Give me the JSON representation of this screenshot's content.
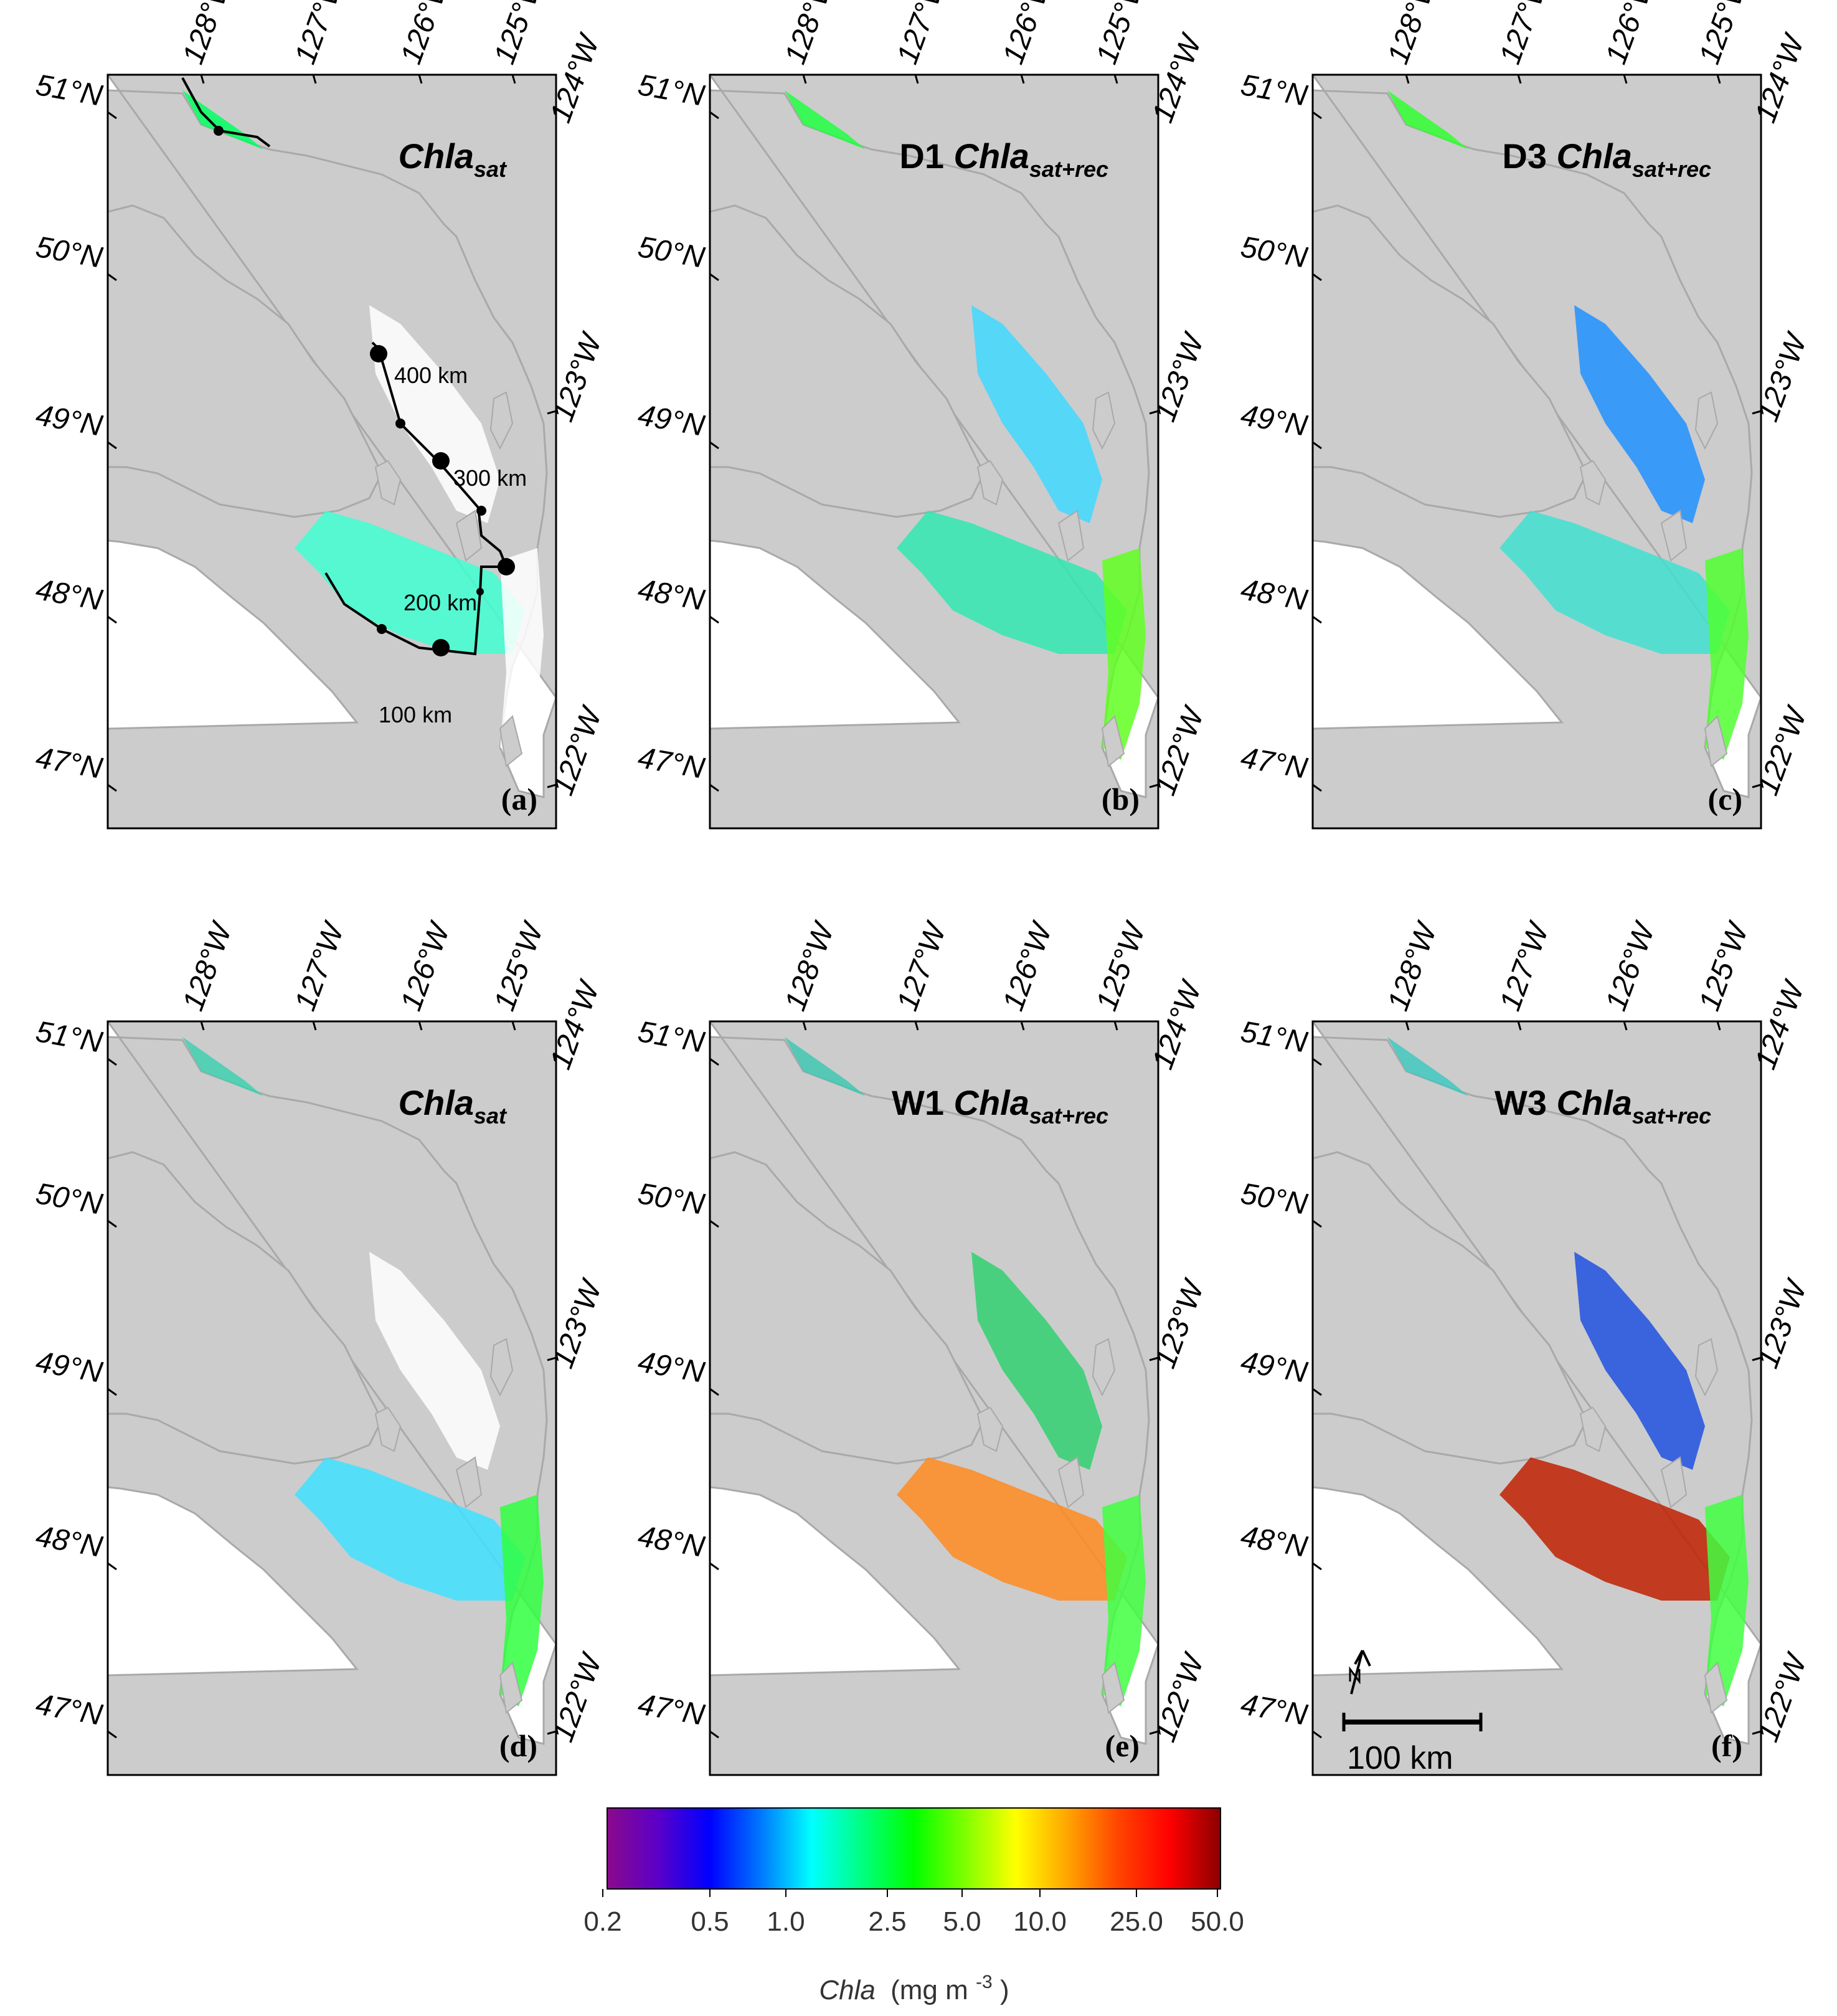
{
  "panels": [
    {
      "id": "a",
      "letter": "(a)",
      "title_prefix": "",
      "title_main": "Chla",
      "title_sub": "sat"
    },
    {
      "id": "b",
      "letter": "(b)",
      "title_prefix": "D1",
      "title_main": "Chla",
      "title_sub": "sat+rec"
    },
    {
      "id": "c",
      "letter": "(c)",
      "title_prefix": "D3",
      "title_main": "Chla",
      "title_sub": "sat+rec"
    },
    {
      "id": "d",
      "letter": "(d)",
      "title_prefix": "",
      "title_main": "Chla",
      "title_sub": "sat"
    },
    {
      "id": "e",
      "letter": "(e)",
      "title_prefix": "W1",
      "title_main": "Chla",
      "title_sub": "sat+rec"
    },
    {
      "id": "f",
      "letter": "(f)",
      "title_prefix": "W3",
      "title_main": "Chla",
      "title_sub": "sat+rec"
    }
  ],
  "lat_labels": [
    "51°N",
    "50°N",
    "49°N",
    "48°N",
    "47°N"
  ],
  "lon_top_labels": [
    "128°W",
    "127°W",
    "126°W",
    "125°W",
    "124°W"
  ],
  "lon_right_labels": [
    "123°W",
    "122°W"
  ],
  "transect_labels": [
    "400 km",
    "300 km",
    "200 km",
    "100 km"
  ],
  "scale_bar": {
    "label": "100 km"
  },
  "colorbar": {
    "ticks": [
      "0.2",
      "0.5",
      "1.0",
      "2.5",
      "5.0",
      "10.0",
      "25.0",
      "50.0"
    ],
    "title_main": "Chla",
    "title_unit": "(mg m",
    "title_exp": "-3",
    "title_close": ")",
    "colors": [
      "#8b0a8b",
      "#5a00c8",
      "#0000ff",
      "#0077ff",
      "#00ffff",
      "#00ff7f",
      "#00ff00",
      "#7fff00",
      "#ffff00",
      "#ffa500",
      "#ff4500",
      "#ff0000",
      "#8b0000"
    ]
  },
  "colors": {
    "land": "#cccccc",
    "coast": "#a9a9a9",
    "water": "#ffffff",
    "frame": "#000000"
  }
}
